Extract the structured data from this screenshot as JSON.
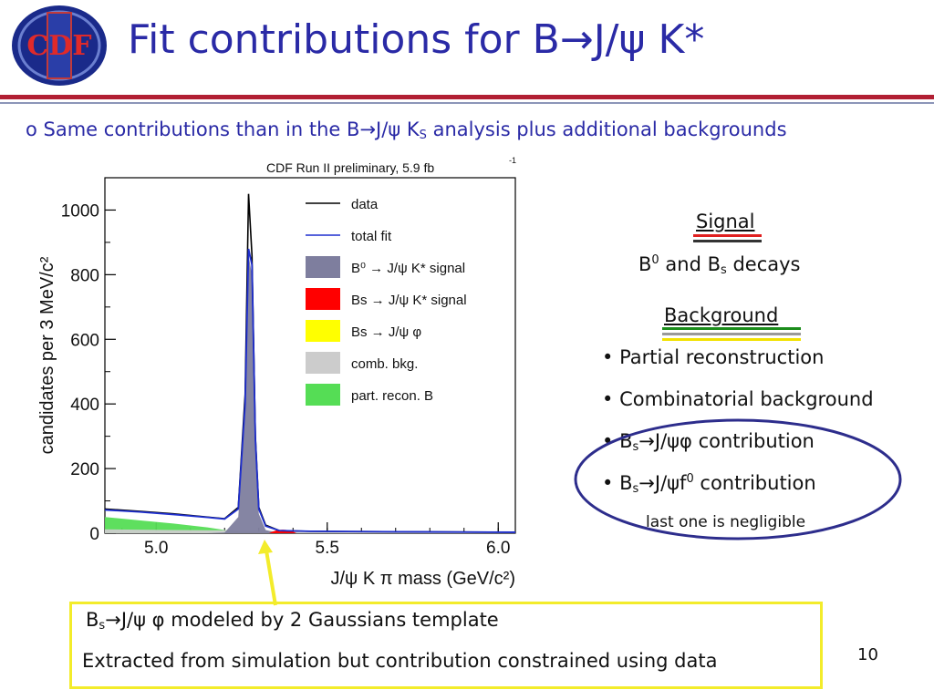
{
  "slide": {
    "title_pre": "Fit contributions for B",
    "title_post": "J/",
    "title_end": "K*",
    "page_number": "10"
  },
  "logo": {
    "text": "CDF"
  },
  "intro": {
    "pre": "o Same contributions than in the B",
    "mid": "J/",
    "ks": "K",
    "ks_sub": "S",
    "post": "analysis plus additional backgrounds"
  },
  "signal": {
    "heading": "Signal",
    "b0": "B",
    "b0_sup": "0",
    "and_bs": "and B",
    "bs_sub": "s",
    "decays": "decays"
  },
  "background": {
    "heading": "Background",
    "items": [
      "Partial reconstruction",
      "Combinatorial background"
    ],
    "bs_phi": {
      "b": "B",
      "sub": "s",
      "mid": "J/",
      "end": "contribution"
    },
    "bs_f0": {
      "b": "B",
      "sub": "s",
      "mid": "J/",
      "f": "f",
      "sup": "0",
      "end": "contribution"
    },
    "negligible": "last one is negligible"
  },
  "notes": {
    "line1_b": "B",
    "line1_sub": "s",
    "line1_mid": "J/",
    "line1_end": "modeled by 2 Gaussians template",
    "line2": "Extracted from simulation but contribution constrained using data"
  },
  "colors": {
    "title": "#2a2aa6",
    "signal_fill": "#7e7e9e",
    "bs_signal": "#ff0000",
    "bs_phi": "#ffff00",
    "comb": "#cccccc",
    "part_recon": "#55dd55",
    "fit_line": "#1f2fcf",
    "data_line": "#000000",
    "box": "#f3ec2b",
    "ellipse": "#2d2d8c"
  },
  "chart_data": {
    "type": "line",
    "title": "CDF Run II preliminary, 5.9 fb",
    "title_sup": "-1",
    "xlabel": "J/ψ K π mass (GeV/c²)",
    "ylabel": "candidates per 3 MeV/c²",
    "xlim": [
      4.85,
      6.05
    ],
    "ylim": [
      0,
      1100
    ],
    "x_ticks": [
      "5.0",
      "5.5",
      "6.0"
    ],
    "y_ticks": [
      "0",
      "200",
      "400",
      "600",
      "800",
      "1000"
    ],
    "legend_position": "top-right",
    "legend": [
      {
        "label": "data",
        "kind": "line",
        "color": "#000000"
      },
      {
        "label": "total fit",
        "kind": "line",
        "color": "#1f2fcf"
      },
      {
        "label": "B⁰ → J/ψ K* signal",
        "kind": "box",
        "color": "#7e7e9e"
      },
      {
        "label": "Bs → J/ψ K* signal",
        "kind": "box",
        "color": "#ff0000"
      },
      {
        "label": "Bs → J/ψ φ",
        "kind": "box",
        "color": "#ffff00"
      },
      {
        "label": "comb. bkg.",
        "kind": "box",
        "color": "#cccccc"
      },
      {
        "label": "part. recon. B",
        "kind": "box",
        "color": "#55dd55"
      }
    ],
    "x": [
      4.85,
      4.95,
      5.05,
      5.15,
      5.2,
      5.24,
      5.26,
      5.27,
      5.28,
      5.29,
      5.3,
      5.32,
      5.36,
      5.45,
      5.6,
      5.8,
      6.05
    ],
    "series": [
      {
        "name": "data",
        "values": [
          75,
          68,
          60,
          50,
          45,
          80,
          430,
          1050,
          860,
          300,
          80,
          25,
          8,
          6,
          5,
          4,
          3
        ]
      },
      {
        "name": "total fit",
        "values": [
          72,
          66,
          58,
          49,
          44,
          75,
          400,
          880,
          830,
          290,
          75,
          22,
          8,
          6,
          5,
          4,
          3
        ]
      }
    ],
    "components": [
      {
        "name": "part. recon. B",
        "values": [
          50,
          40,
          30,
          18,
          10,
          4,
          2,
          1,
          0,
          0,
          0,
          0,
          0,
          0,
          0,
          0,
          0
        ]
      },
      {
        "name": "comb. bkg.",
        "values": [
          12,
          11,
          10,
          9,
          9,
          8,
          8,
          8,
          8,
          8,
          7,
          7,
          6,
          5,
          4,
          3,
          2
        ]
      },
      {
        "name": "B⁰ → J/ψ K* signal",
        "values": [
          0,
          0,
          0,
          0,
          2,
          50,
          380,
          860,
          800,
          270,
          60,
          10,
          0,
          0,
          0,
          0,
          0
        ]
      }
    ]
  }
}
